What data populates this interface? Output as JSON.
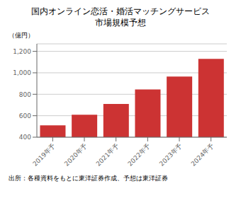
{
  "chart_data": {
    "type": "bar",
    "title": "国内オンライン恋活・婚活マッチングサービス",
    "subtitle": "市場規模予想",
    "y_label": "（億円）",
    "annotations": [
      "出所：各種資料をもとに東洋証券作成、予想は東洋証券"
    ],
    "categories": [
      "2019年予",
      "2020年予",
      "2021年予",
      "2022年予",
      "2023年予",
      "2024年予"
    ],
    "values": [
      510,
      610,
      710,
      845,
      965,
      1130
    ],
    "color": "#cc3333",
    "ylim": [
      400,
      1270
    ],
    "yticks": [
      400,
      600,
      800,
      {
        "value": 1000,
        "label": "1,000"
      },
      {
        "value": 1200,
        "label": "1,200"
      }
    ],
    "grid": true
  }
}
